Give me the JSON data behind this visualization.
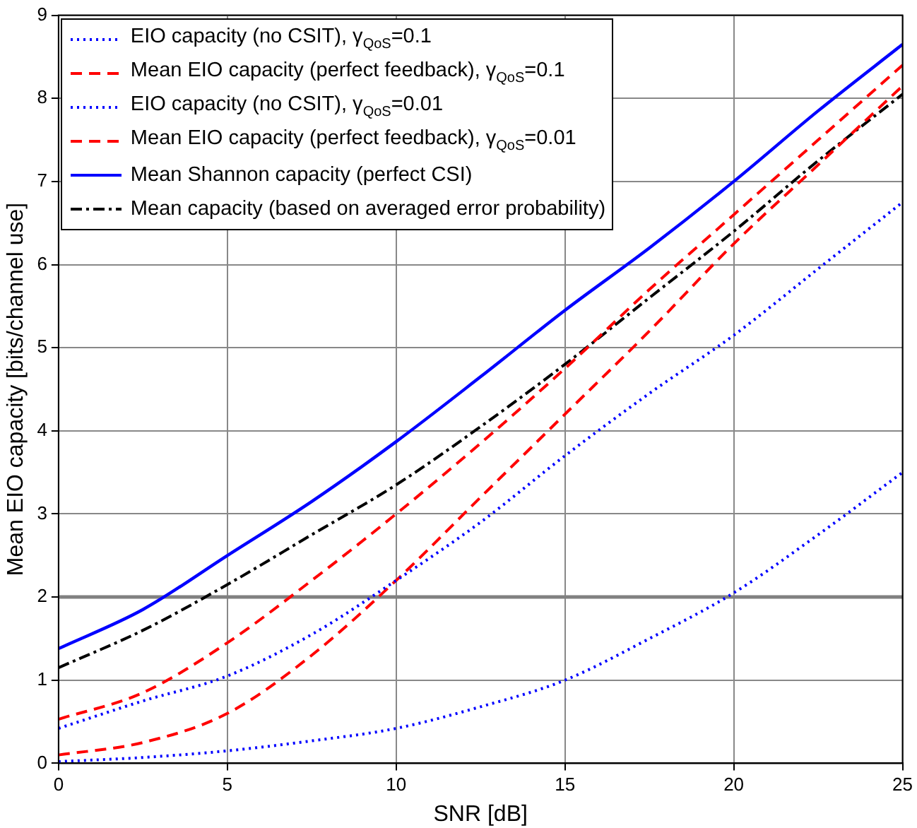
{
  "chart_data": {
    "type": "line",
    "xlabel": "SNR [dB]",
    "ylabel": "Mean EIO capacity [bits/channel use]",
    "x": [
      0,
      2.5,
      5,
      7.5,
      10,
      12.5,
      15,
      17.5,
      20,
      22.5,
      25
    ],
    "series": [
      {
        "name": "EIO capacity (no CSIT), γ$_{QoS}$=0.1",
        "color": "#0000ff",
        "line_style": "dotted",
        "values": [
          0.42,
          0.75,
          1.05,
          1.55,
          2.2,
          2.9,
          3.7,
          4.45,
          5.15,
          5.95,
          6.75
        ]
      },
      {
        "name": "Mean EIO capacity (perfect feedback), γ$_{QoS}$=0.1",
        "color": "#ff0000",
        "line_style": "dashed",
        "values": [
          0.53,
          0.85,
          1.45,
          2.2,
          3.0,
          3.85,
          4.75,
          5.7,
          6.6,
          7.5,
          8.4
        ]
      },
      {
        "name": "EIO capacity (no CSIT), γ$_{QoS}$=0.01",
        "color": "#0000ff",
        "line_style": "dotted",
        "values": [
          0.02,
          0.07,
          0.15,
          0.27,
          0.42,
          0.68,
          1.0,
          1.5,
          2.05,
          2.75,
          3.5
        ]
      },
      {
        "name": "Mean EIO capacity (perfect feedback), γ$_{QoS}$=0.01",
        "color": "#ff0000",
        "line_style": "dashed",
        "values": [
          0.1,
          0.25,
          0.6,
          1.3,
          2.2,
          3.2,
          4.2,
          5.2,
          6.25,
          7.2,
          8.15
        ]
      },
      {
        "name": "Mean Shannon capacity (perfect CSI)",
        "color": "#0000ff",
        "line_style": "solid",
        "values": [
          1.38,
          1.85,
          2.5,
          3.15,
          3.87,
          4.65,
          5.45,
          6.2,
          7.0,
          7.85,
          8.65
        ]
      },
      {
        "name": "Mean capacity (based on averaged error probability)",
        "color": "#000000",
        "line_style": "dashdot",
        "values": [
          1.15,
          1.6,
          2.15,
          2.75,
          3.35,
          4.05,
          4.8,
          5.6,
          6.4,
          7.25,
          8.05
        ]
      }
    ],
    "ref_lines": [
      {
        "axis": "y",
        "value": 2,
        "color": "#808080"
      }
    ],
    "xlim": [
      0,
      25
    ],
    "xticks": [
      0,
      5,
      10,
      15,
      20,
      25
    ],
    "ylim": [
      0,
      9
    ],
    "yticks": [
      0,
      1,
      2,
      3,
      4,
      5,
      6,
      7,
      8,
      9
    ],
    "grid": true,
    "legend": "top left",
    "marker": "none"
  }
}
